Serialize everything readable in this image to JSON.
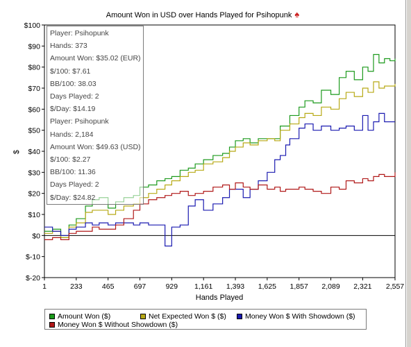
{
  "chart_data": {
    "type": "line",
    "title": "Amount Won in USD over Hands Played for Psihopunk",
    "title_icon": "spade-icon",
    "xlabel": "Hands Played",
    "ylabel": "$",
    "xlim": [
      1,
      2557
    ],
    "ylim": [
      -20,
      100
    ],
    "x_ticks": [
      "1",
      "233",
      "465",
      "697",
      "929",
      "1,161",
      "1,393",
      "1,625",
      "1,857",
      "2,089",
      "2,321",
      "2,557"
    ],
    "x_tick_values": [
      1,
      233,
      465,
      697,
      929,
      1161,
      1393,
      1625,
      1857,
      2089,
      2321,
      2557
    ],
    "y_ticks": [
      "$100",
      "$90",
      "$80",
      "$70",
      "$60",
      "$50",
      "$40",
      "$30",
      "$20",
      "$10",
      "$0",
      "$-10",
      "$-20"
    ],
    "y_tick_values": [
      100,
      90,
      80,
      70,
      60,
      50,
      40,
      30,
      20,
      10,
      0,
      -10,
      -20
    ],
    "grid": false,
    "legend_position": "bottom",
    "series": [
      {
        "name": "Amount Won ($)",
        "color": "#1c9a1c",
        "x": [
          1,
          60,
          120,
          180,
          233,
          300,
          350,
          400,
          465,
          520,
          580,
          650,
          697,
          760,
          820,
          880,
          929,
          990,
          1050,
          1100,
          1161,
          1230,
          1300,
          1350,
          1393,
          1450,
          1500,
          1560,
          1625,
          1680,
          1720,
          1760,
          1790,
          1857,
          1900,
          1960,
          2020,
          2089,
          2150,
          2200,
          2260,
          2321,
          2360,
          2400,
          2440,
          2480,
          2520,
          2557
        ],
        "values": [
          2,
          3,
          -1,
          5,
          8,
          14,
          17,
          18,
          13,
          16,
          18,
          19,
          23,
          24,
          26,
          27,
          28,
          31,
          32,
          34,
          36,
          38,
          39,
          42,
          45,
          46,
          44,
          46,
          46,
          46,
          52,
          52,
          57,
          61,
          64,
          63,
          69,
          67,
          75,
          78,
          74,
          80,
          78,
          86,
          82,
          84,
          83,
          84
        ]
      },
      {
        "name": "Net Expected Won $ ($)",
        "color": "#b7a915",
        "x": [
          1,
          60,
          120,
          180,
          233,
          300,
          350,
          400,
          465,
          520,
          580,
          650,
          697,
          760,
          820,
          880,
          929,
          990,
          1050,
          1100,
          1161,
          1230,
          1300,
          1350,
          1393,
          1450,
          1500,
          1560,
          1625,
          1680,
          1720,
          1760,
          1790,
          1857,
          1900,
          1960,
          2020,
          2089,
          2150,
          2200,
          2260,
          2321,
          2360,
          2400,
          2440,
          2480,
          2520,
          2557
        ],
        "values": [
          1,
          2,
          -1,
          4,
          6,
          11,
          12,
          12,
          10,
          12,
          14,
          15,
          18,
          20,
          22,
          24,
          26,
          28,
          30,
          31,
          34,
          35,
          37,
          40,
          42,
          44,
          43,
          45,
          46,
          45,
          50,
          50,
          53,
          56,
          58,
          57,
          61,
          60,
          65,
          68,
          66,
          70,
          68,
          73,
          70,
          71,
          71,
          72
        ]
      },
      {
        "name": "Money Won $ With Showdown ($)",
        "color": "#1a1ab0",
        "x": [
          1,
          60,
          120,
          180,
          233,
          300,
          350,
          400,
          465,
          520,
          580,
          650,
          697,
          760,
          820,
          880,
          929,
          990,
          1050,
          1100,
          1161,
          1230,
          1300,
          1350,
          1393,
          1450,
          1500,
          1560,
          1625,
          1680,
          1720,
          1760,
          1790,
          1857,
          1900,
          1960,
          2020,
          2089,
          2150,
          2200,
          2260,
          2321,
          2360,
          2400,
          2440,
          2480,
          2520,
          2557
        ],
        "values": [
          4,
          2,
          0,
          3,
          4,
          6,
          5,
          6,
          5,
          6,
          6,
          5,
          6,
          5,
          5,
          -5,
          4,
          5,
          14,
          17,
          12,
          15,
          18,
          22,
          22,
          18,
          22,
          26,
          30,
          36,
          38,
          43,
          46,
          51,
          53,
          50,
          52,
          50,
          51,
          52,
          50,
          57,
          50,
          54,
          58,
          54,
          54,
          54
        ]
      },
      {
        "name": "Money Won $ Without Showdown ($)",
        "color": "#b01818",
        "x": [
          1,
          60,
          120,
          180,
          233,
          300,
          350,
          400,
          465,
          520,
          580,
          650,
          697,
          760,
          820,
          880,
          929,
          990,
          1050,
          1100,
          1161,
          1230,
          1300,
          1350,
          1393,
          1450,
          1500,
          1560,
          1625,
          1680,
          1720,
          1760,
          1790,
          1857,
          1900,
          1960,
          2020,
          2089,
          2150,
          2200,
          2260,
          2321,
          2360,
          2400,
          2440,
          2480,
          2520,
          2557
        ],
        "values": [
          -2,
          -1,
          -2,
          1,
          2,
          2,
          4,
          3,
          3,
          5,
          8,
          12,
          15,
          17,
          18,
          19,
          20,
          21,
          19,
          20,
          21,
          23,
          24,
          22,
          25,
          23,
          22,
          24,
          22,
          23,
          21,
          22,
          22,
          23,
          22,
          21,
          20,
          23,
          22,
          26,
          25,
          27,
          26,
          28,
          29,
          28,
          28,
          30
        ]
      }
    ]
  },
  "info_box": {
    "lines": [
      "Player: Psihopunk",
      "Hands: 373",
      "Amount Won: $35.02 (EUR)",
      "$/100: $7.61",
      "BB/100: 38.03",
      "Days Played: 2",
      "$/Day: $14.19",
      "Player: Psihopunk",
      "Hands: 2,184",
      "Amount Won: $49.63 (USD)",
      "$/100: $2.27",
      "BB/100: 11.36",
      "Days Played: 2",
      "$/Day: $24.82"
    ]
  }
}
